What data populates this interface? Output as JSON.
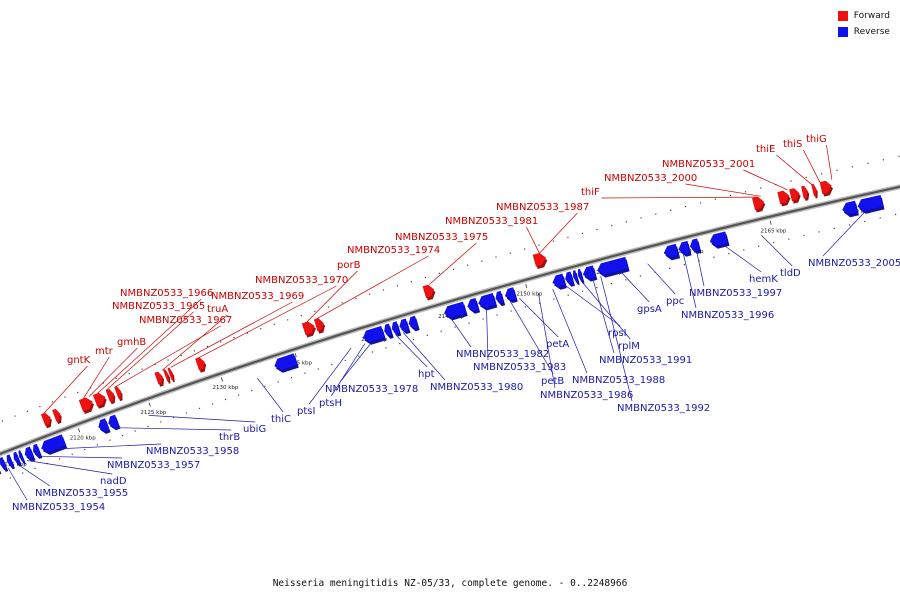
{
  "legend": {
    "forward": {
      "label": "Forward",
      "color": "#ee1111"
    },
    "reverse": {
      "label": "Reverse",
      "color": "#1111ee"
    }
  },
  "caption": "Neisseria meningitidis NZ-05/33, complete genome. - 0..2248966",
  "scale_ticks": [
    {
      "kbp": 2115,
      "label": "2115 kbp"
    },
    {
      "kbp": 2120,
      "label": "2120 kbp"
    },
    {
      "kbp": 2125,
      "label": "2125 kbp"
    },
    {
      "kbp": 2130,
      "label": "2130 kbp"
    },
    {
      "kbp": 2135,
      "label": "2135 kbp"
    },
    {
      "kbp": 2140,
      "label": "2140 kbp"
    },
    {
      "kbp": 2145,
      "label": "2145 kbp"
    },
    {
      "kbp": 2150,
      "label": "2150 kbp"
    },
    {
      "kbp": 2155,
      "label": "2155 kbp"
    },
    {
      "kbp": 2160,
      "label": "2160 kbp"
    },
    {
      "kbp": 2165,
      "label": "2165 kbp"
    },
    {
      "kbp": 2170,
      "label": "2170 kbp"
    }
  ],
  "forward_labels": [
    {
      "text": "gntK",
      "kbp": 2118.2
    },
    {
      "text": "mtr",
      "kbp": 2121.0
    },
    {
      "text": "gmhB",
      "kbp": 2121.4
    },
    {
      "text": "NMBNZ0533_1966",
      "kbp": 2122.0
    },
    {
      "text": "NMBNZ0533_1965",
      "kbp": 2122.6
    },
    {
      "text": "NMBNZ0533_1967",
      "kbp": 2123.2
    },
    {
      "text": "truA",
      "kbp": 2126.5
    },
    {
      "text": "NMBNZ0533_1969",
      "kbp": 2127.1
    },
    {
      "text": "NMBNZ0533_1970",
      "kbp": 2129.0
    },
    {
      "text": "porB",
      "kbp": 2136.3
    },
    {
      "text": "NMBNZ0533_1974",
      "kbp": 2136.9
    },
    {
      "text": "NMBNZ0533_1975",
      "kbp": 2144.3
    },
    {
      "text": "NMBNZ0533_1981",
      "kbp": 2151.3
    },
    {
      "text": "NMBNZ0533_1987",
      "kbp": 2151.3
    },
    {
      "text": "thiF",
      "kbp": 2164.6
    },
    {
      "text": "NMBNZ0533_2000",
      "kbp": 2164.8
    },
    {
      "text": "NMBNZ0533_2001",
      "kbp": 2166.4
    },
    {
      "text": "thiE",
      "kbp": 2167.8
    },
    {
      "text": "thiS",
      "kbp": 2168.3
    },
    {
      "text": "thiG",
      "kbp": 2169.0
    }
  ],
  "reverse_labels": [
    {
      "text": "NMBNZ0533_1954",
      "kbp": 2114.6
    },
    {
      "text": "NMBNZ0533_1955",
      "kbp": 2115.3
    },
    {
      "text": "nadD",
      "kbp": 2116.0
    },
    {
      "text": "NMBNZ0533_1957",
      "kbp": 2116.8
    },
    {
      "text": "NMBNZ0533_1958",
      "kbp": 2118.2
    },
    {
      "text": "thrB",
      "kbp": 2122.3
    },
    {
      "text": "ubiG",
      "kbp": 2124.7
    },
    {
      "text": "thiC",
      "kbp": 2132.2
    },
    {
      "text": "ptsI",
      "kbp": 2138.5
    },
    {
      "text": "ptsH",
      "kbp": 2139.4
    },
    {
      "text": "NMBNZ0533_1978",
      "kbp": 2139.9
    },
    {
      "text": "hpt",
      "kbp": 2141.4
    },
    {
      "text": "NMBNZ0533_1980",
      "kbp": 2141.9
    },
    {
      "text": "NMBNZ0533_1982",
      "kbp": 2145.0
    },
    {
      "text": "NMBNZ0533_1983",
      "kbp": 2147.3
    },
    {
      "text": "petB",
      "kbp": 2148.8
    },
    {
      "text": "petA",
      "kbp": 2149.4
    },
    {
      "text": "NMBNZ0533_1986",
      "kbp": 2150.6
    },
    {
      "text": "NMBNZ0533_1988",
      "kbp": 2151.5
    },
    {
      "text": "rpsI",
      "kbp": 2152.3
    },
    {
      "text": "rplM",
      "kbp": 2153.3
    },
    {
      "text": "NMBNZ0533_1991",
      "kbp": 2154.0
    },
    {
      "text": "NMBNZ0533_1992",
      "kbp": 2154.5
    },
    {
      "text": "gpsA",
      "kbp": 2155.7
    },
    {
      "text": "ppc",
      "kbp": 2157.4
    },
    {
      "text": "NMBNZ0533_1996",
      "kbp": 2159.6
    },
    {
      "text": "NMBNZ0533_1997",
      "kbp": 2160.4
    },
    {
      "text": "hemK",
      "kbp": 2162.0
    },
    {
      "text": "tldD",
      "kbp": 2164.3
    },
    {
      "text": "NMBNZ0533_2005",
      "kbp": 2170.5
    }
  ],
  "forward_genes": [
    [
      2118.0,
      2118.5
    ],
    [
      2118.8,
      2119.2
    ],
    [
      2120.7,
      2121.5
    ],
    [
      2121.7,
      2122.4
    ],
    [
      2122.6,
      2123.0
    ],
    [
      2123.2,
      2123.5
    ],
    [
      2126.0,
      2126.4
    ],
    [
      2126.6,
      2126.8
    ],
    [
      2126.9,
      2127.1
    ],
    [
      2128.8,
      2129.3
    ],
    [
      2136.0,
      2136.7
    ],
    [
      2136.8,
      2137.3
    ],
    [
      2143.9,
      2144.5
    ],
    [
      2150.9,
      2151.6
    ],
    [
      2164.3,
      2164.9
    ],
    [
      2165.8,
      2166.4
    ],
    [
      2166.5,
      2167.0
    ],
    [
      2167.2,
      2167.5
    ],
    [
      2167.8,
      2168.0
    ],
    [
      2168.3,
      2168.9
    ]
  ],
  "reverse_genes": [
    [
      2112.0,
      2112.7
    ],
    [
      2112.8,
      2113.3
    ],
    [
      2113.5,
      2114.0
    ],
    [
      2114.2,
      2114.5
    ],
    [
      2114.7,
      2115.0
    ],
    [
      2115.2,
      2115.5
    ],
    [
      2115.6,
      2115.8
    ],
    [
      2116.0,
      2116.5
    ],
    [
      2116.6,
      2117.0
    ],
    [
      2117.2,
      2118.8
    ],
    [
      2121.3,
      2121.9
    ],
    [
      2122.0,
      2122.6
    ],
    [
      2133.5,
      2134.9
    ],
    [
      2139.4,
      2140.7
    ],
    [
      2140.8,
      2141.2
    ],
    [
      2141.3,
      2141.7
    ],
    [
      2141.8,
      2142.3
    ],
    [
      2142.4,
      2142.9
    ],
    [
      2144.7,
      2146.0
    ],
    [
      2146.2,
      2146.8
    ],
    [
      2146.9,
      2147.9
    ],
    [
      2148.0,
      2148.4
    ],
    [
      2148.6,
      2149.2
    ],
    [
      2151.6,
      2152.3
    ],
    [
      2152.4,
      2152.8
    ],
    [
      2152.9,
      2153.1
    ],
    [
      2153.2,
      2153.4
    ],
    [
      2153.5,
      2154.2
    ],
    [
      2154.4,
      2156.2
    ],
    [
      2158.5,
      2159.3
    ],
    [
      2159.4,
      2160.0
    ],
    [
      2160.1,
      2160.6
    ],
    [
      2161.3,
      2162.3
    ],
    [
      2169.2,
      2170.0
    ],
    [
      2170.1,
      2171.5
    ]
  ]
}
